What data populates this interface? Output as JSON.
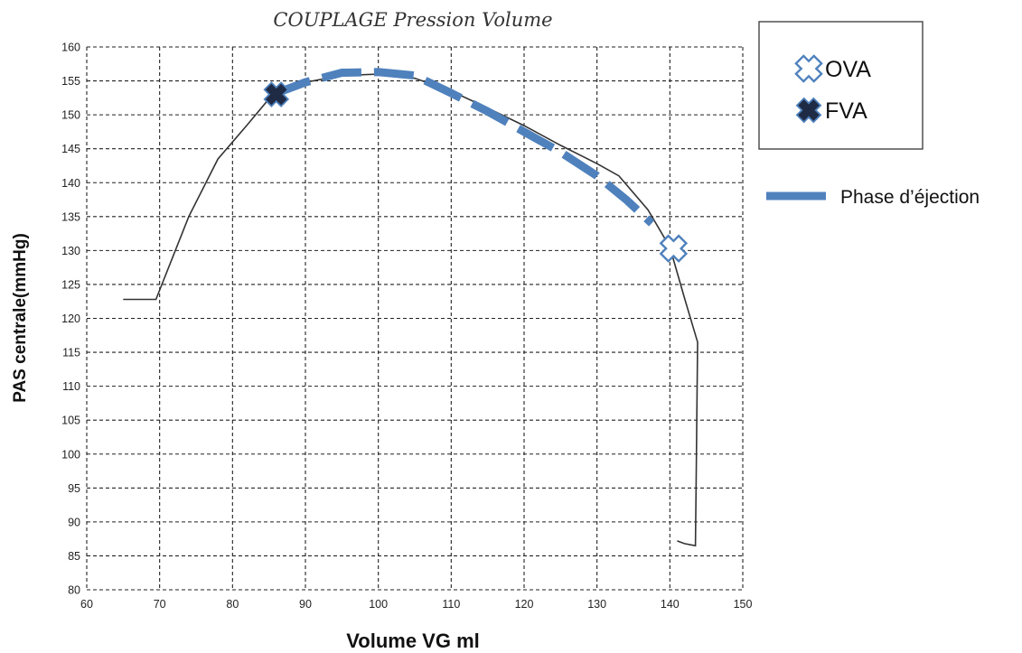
{
  "chart_data": {
    "type": "line",
    "title": "COUPLAGE Pression Volume",
    "xlabel": "Volume VG ml",
    "ylabel": "PAS centrale(mmHg)",
    "xlim": [
      60,
      150
    ],
    "ylim": [
      80,
      160
    ],
    "x_ticks": [
      "60",
      "70",
      "80",
      "90",
      "100",
      "110",
      "120",
      "130",
      "140",
      "150"
    ],
    "y_ticks": [
      "80",
      "85",
      "90",
      "95",
      "100",
      "105",
      "110",
      "115",
      "120",
      "125",
      "130",
      "135",
      "140",
      "145",
      "150",
      "155",
      "160"
    ],
    "grid": true,
    "legend_position": "right",
    "series": [
      {
        "role": "loop",
        "color": "#333333",
        "points": [
          [
            65,
            122.8
          ],
          [
            69.5,
            122.8
          ],
          [
            74,
            135
          ],
          [
            78,
            143.5
          ],
          [
            82,
            148.5
          ],
          [
            85.5,
            153
          ],
          [
            90,
            154.8
          ],
          [
            95,
            155.8
          ],
          [
            100,
            156
          ],
          [
            105,
            155.4
          ],
          [
            110,
            153.5
          ],
          [
            115,
            151
          ],
          [
            120,
            148.4
          ],
          [
            125,
            145.5
          ],
          [
            130,
            142.8
          ],
          [
            133,
            141
          ],
          [
            137,
            136
          ],
          [
            140,
            130.5
          ],
          [
            142,
            123
          ],
          [
            143.8,
            116.5
          ],
          [
            143.6,
            96
          ],
          [
            143.5,
            86.5
          ],
          [
            142,
            86.8
          ],
          [
            141,
            87.2
          ]
        ]
      },
      {
        "name": "Phase d’éjection",
        "role": "ejection",
        "color": "#4f81bd",
        "points": [
          [
            85.5,
            153
          ],
          [
            90,
            154.8
          ],
          [
            95,
            156.2
          ],
          [
            100,
            156.3
          ],
          [
            105,
            155.8
          ],
          [
            110,
            153.2
          ],
          [
            115,
            150.5
          ],
          [
            120,
            147.5
          ],
          [
            125,
            144.5
          ],
          [
            130,
            141
          ],
          [
            134,
            137.5
          ],
          [
            137.5,
            134
          ]
        ]
      }
    ],
    "markers": [
      {
        "name": "OVA",
        "x": 140.5,
        "y": 130.3,
        "style": "open-cross"
      },
      {
        "name": "FVA",
        "x": 86,
        "y": 153,
        "style": "filled-cross"
      }
    ],
    "legend": {
      "ova_label": "OVA",
      "fva_label": "FVA",
      "ejection_label": "Phase d’éjection"
    },
    "colors": {
      "ejection": "#4f81bd",
      "cross_outline": "#4f81bd",
      "cross_dark": "#1f2a44",
      "loop": "#333333"
    }
  }
}
